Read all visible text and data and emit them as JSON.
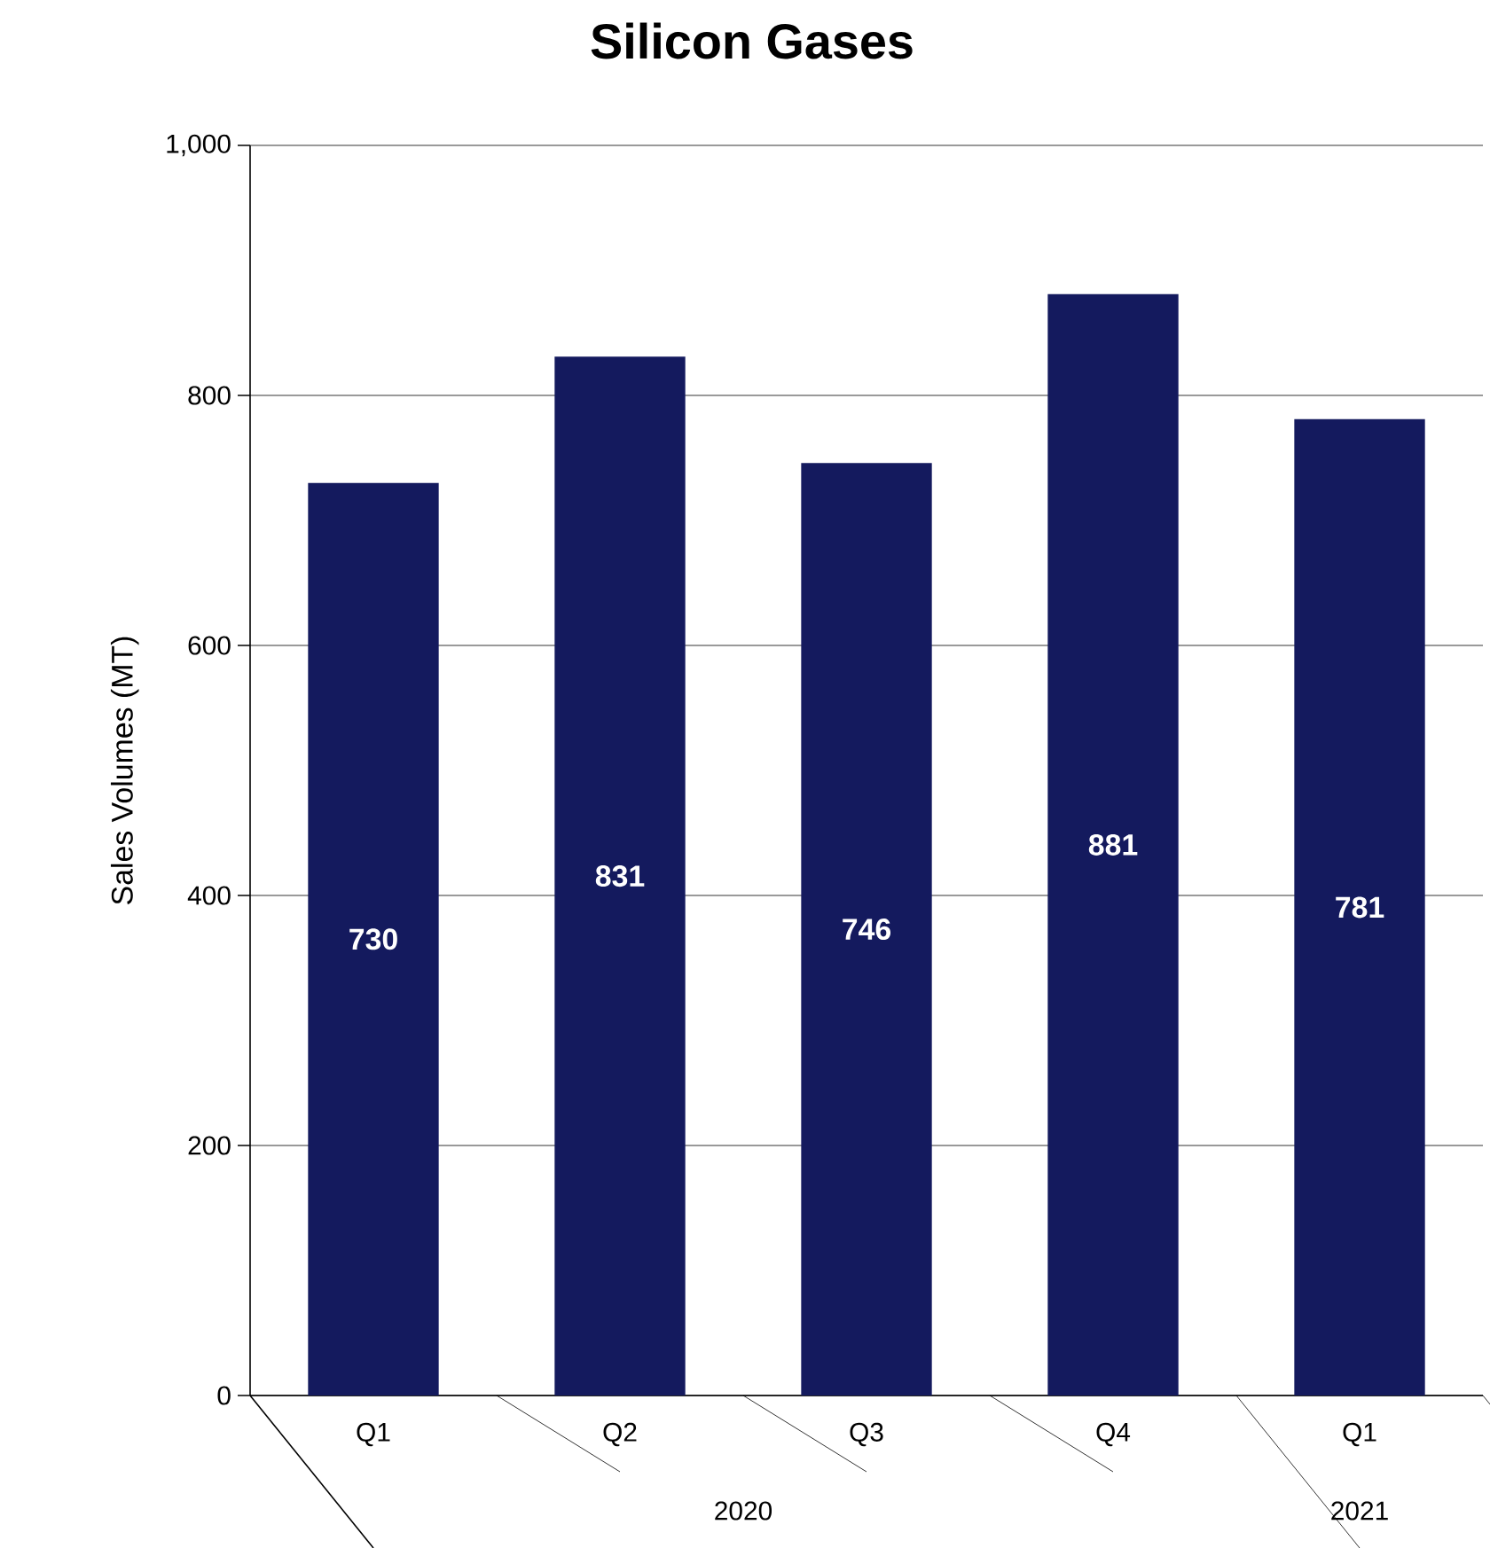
{
  "chart_data": {
    "type": "bar",
    "title": "Silicon Gases",
    "ylabel": "Sales Volumes (MT)",
    "categories": [
      "Q1",
      "Q2",
      "Q3",
      "Q4",
      "Q1"
    ],
    "values": [
      730,
      831,
      746,
      881,
      781
    ],
    "color": "#141a5e",
    "ylim": [
      0,
      1000
    ],
    "yticks": [
      0,
      200,
      400,
      600,
      800,
      {
        "value": 1000,
        "label": "1,000"
      }
    ],
    "grid": "y",
    "data_labels": true,
    "annotations": [
      "2020",
      "2021"
    ]
  }
}
